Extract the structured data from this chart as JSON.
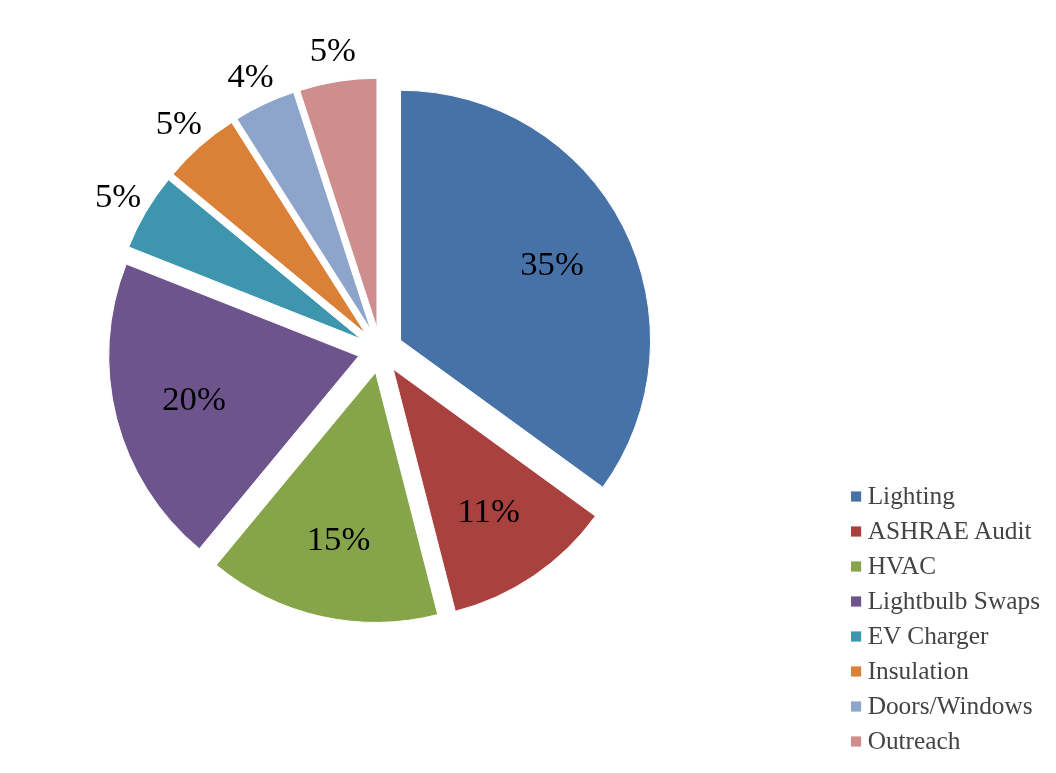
{
  "chart_data": {
    "type": "pie",
    "categories": [
      "Lighting",
      "ASHRAE Audit",
      "HVAC",
      "Lightbulb Swaps",
      "EV Charger",
      "Insulation",
      "Doors/Windows",
      "Outreach"
    ],
    "values": [
      35,
      11,
      15,
      20,
      5,
      5,
      4,
      5
    ],
    "colors": [
      "#4672a8",
      "#a9423f",
      "#86a44a",
      "#6e548d",
      "#3d96ae",
      "#da8137",
      "#8ea5cb",
      "#ce8e8d"
    ],
    "value_labels": [
      "35%",
      "11%",
      "15%",
      "20%",
      "5%",
      "5%",
      "4%",
      "5%"
    ],
    "legend": "bottom right"
  }
}
